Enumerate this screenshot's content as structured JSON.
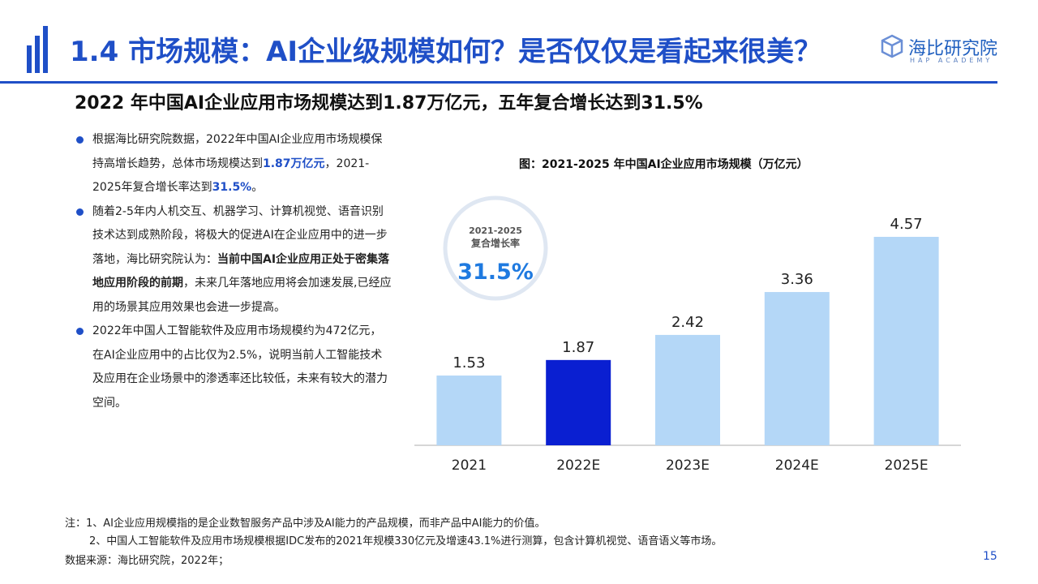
{
  "title": "1.4 市场规模：AI企业级规模如何？是否仅仅是看起来很美？",
  "logo": {
    "cn": "海比研究院",
    "en": "HAP ACADEMY"
  },
  "subtitle": "2022 年中国AI企业应用市场规模达到1.87万亿元，五年复合增长达到31.5%",
  "bullets": [
    {
      "parts": [
        {
          "text": "根据海比研究院数据，2022年中国AI企业应用市场规模保持高增长趋势，总体市场规模达到",
          "style": "normal"
        },
        {
          "text": "1.87万亿元",
          "style": "hl"
        },
        {
          "text": "，2021-2025年复合增长率达到",
          "style": "normal"
        },
        {
          "text": "31.5%",
          "style": "hl"
        },
        {
          "text": "。",
          "style": "normal"
        }
      ]
    },
    {
      "parts": [
        {
          "text": "随着2-5年内人机交互、机器学习、计算机视觉、语音识别技术达到成熟阶段，将极大的促进AI在企业应用中的进一步落地，海比研究院认为：",
          "style": "normal"
        },
        {
          "text": "当前中国AI企业应用正处于密集落地应用阶段的前期",
          "style": "bold"
        },
        {
          "text": "，未来几年落地应用将会加速发展,已经应用的场景其应用效果也会进一步提高。",
          "style": "normal"
        }
      ]
    },
    {
      "parts": [
        {
          "text": "2022年中国人工智能软件及应用市场规模约为472亿元，在AI企业应用中的占比仅为2.5%，说明当前人工智能技术及应用在企业场景中的渗透率还比较低，未来有较大的潜力空间。",
          "style": "normal"
        }
      ]
    }
  ],
  "chart_data": {
    "type": "bar",
    "title": "图：2021-2025 年中国AI企业应用市场规模（万亿元）",
    "categories": [
      "2021",
      "2022E",
      "2023E",
      "2024E",
      "2025E"
    ],
    "values": [
      1.53,
      1.87,
      2.42,
      3.36,
      4.57
    ],
    "value_labels": [
      "1.53",
      "1.87",
      "2.42",
      "3.36",
      "4.57"
    ],
    "highlight_index": 1,
    "colors": {
      "bar": "#b4d7f7",
      "highlight": "#0a1fd1",
      "axis": "#c8c8c8"
    },
    "ylim": [
      0,
      5
    ],
    "grid": false,
    "badge": {
      "line1": "2021-2025",
      "line2": "复合增长率",
      "value": "31.5%"
    }
  },
  "notes": [
    "注：1、AI企业应用规模指的是企业数智服务产品中涉及AI能力的产品规模，而非产品中AI能力的价值。",
    "2、中国人工智能软件及应用市场规模根据IDC发布的2021年规模330亿元及增速43.1%进行测算，包含计算机视觉、语音语义等市场。",
    "数据来源：海比研究院，2022年；"
  ],
  "page_number": "15"
}
